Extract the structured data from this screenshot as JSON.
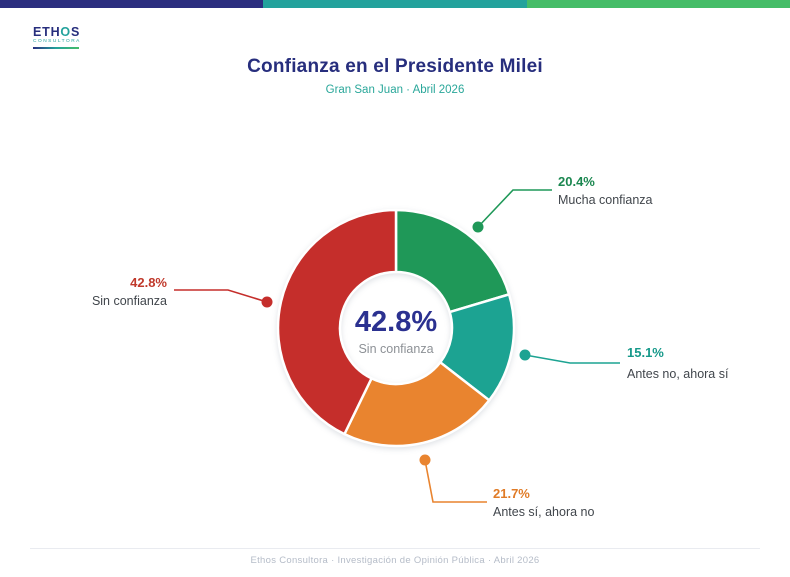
{
  "brand": {
    "name_pre": "ETH",
    "name_o": "O",
    "name_post": "S",
    "tagline": "CONSULTORA"
  },
  "header": {
    "title": "Confianza en el Presidente Milei",
    "subtitle": "Gran San Juan  ·  Abril 2026"
  },
  "palette": {
    "navy": "#2b2e7f",
    "teal": "#23a29c",
    "green": "#45bd68"
  },
  "topbar": {
    "colors": [
      "#2b2e7f",
      "#23a29c",
      "#45bd68"
    ]
  },
  "chart_data": {
    "type": "pie",
    "subtype": "donut",
    "title": "Confianza en el Presidente Milei",
    "subtitle": "Gran San Juan · Abril 2026",
    "unit": "%",
    "direction": "clockwise",
    "start_angle": "12-oclock",
    "donut_hole_ratio": 0.47,
    "slices": [
      {
        "label": "Mucha confianza",
        "value": 20.4,
        "color": "#1f9858",
        "label_color": "#1b8750"
      },
      {
        "label": "Antes no, ahora sí",
        "value": 15.1,
        "color": "#1ca392",
        "label_color": "#16998a"
      },
      {
        "label": "Antes sí, ahora no",
        "value": 21.7,
        "color": "#e9842f",
        "label_color": "#e07b26"
      },
      {
        "label": "Sin confianza",
        "value": 42.8,
        "color": "#c52e2b",
        "label_color": "#c0392b"
      }
    ],
    "center": {
      "value": "42.8%",
      "label": "Sin confianza"
    }
  },
  "footer": {
    "text": "Ethos Consultora  ·  Investigación de Opinión Pública  ·  Abril 2026"
  }
}
